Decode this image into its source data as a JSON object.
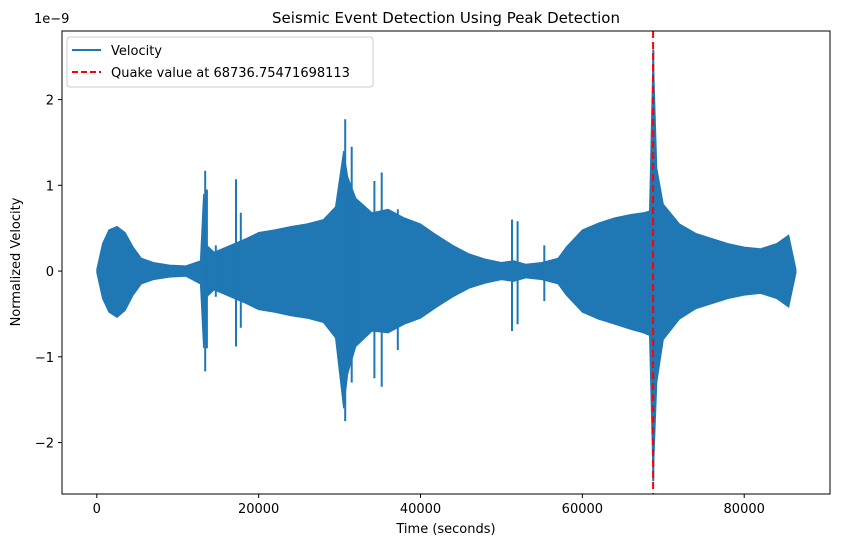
{
  "chart_data": {
    "type": "line",
    "title": "Seismic Event Detection Using Peak Detection",
    "xlabel": "Time (seconds)",
    "ylabel": "Normalized Velocity",
    "y_offset_label": "1e−9",
    "xlim": [
      -4300,
      90600
    ],
    "ylim": [
      -2.6,
      2.8
    ],
    "x_ticks": [
      0,
      20000,
      40000,
      60000,
      80000
    ],
    "x_tick_labels": [
      "0",
      "20000",
      "40000",
      "60000",
      "80000"
    ],
    "y_ticks": [
      -2,
      -1,
      0,
      1,
      2
    ],
    "y_tick_labels": [
      "−2",
      "−1",
      "0",
      "1",
      "2"
    ],
    "grid": false,
    "legend_position": "top-left",
    "series": [
      {
        "name": "Velocity",
        "color": "#1f77b4",
        "style": "solid",
        "envelope": {
          "x": [
            0,
            700,
            1500,
            2500,
            3500,
            4500,
            5500,
            7000,
            9000,
            11000,
            12800,
            13200,
            13600,
            14500,
            16000,
            17000,
            18500,
            20000,
            22000,
            24000,
            26000,
            28000,
            29500,
            30500,
            31000,
            32000,
            34000,
            36000,
            38000,
            40000,
            42000,
            44000,
            46000,
            48000,
            50000,
            51500,
            53000,
            55000,
            57000,
            58000,
            60000,
            62000,
            64000,
            66000,
            67500,
            68300,
            68737,
            69200,
            70000,
            72000,
            74000,
            76000,
            78000,
            80000,
            82000,
            84000,
            85500,
            86400
          ],
          "upper": [
            0.02,
            0.32,
            0.48,
            0.52,
            0.45,
            0.28,
            0.15,
            0.1,
            0.07,
            0.06,
            0.12,
            0.9,
            0.3,
            0.22,
            0.28,
            0.32,
            0.38,
            0.45,
            0.48,
            0.52,
            0.55,
            0.6,
            0.75,
            1.4,
            1.1,
            0.85,
            0.68,
            0.72,
            0.62,
            0.55,
            0.42,
            0.3,
            0.2,
            0.14,
            0.1,
            0.12,
            0.08,
            0.1,
            0.15,
            0.28,
            0.48,
            0.56,
            0.62,
            0.66,
            0.68,
            0.7,
            2.6,
            1.2,
            0.78,
            0.55,
            0.44,
            0.38,
            0.32,
            0.28,
            0.26,
            0.32,
            0.42,
            0.02
          ],
          "lower": [
            -0.02,
            -0.32,
            -0.48,
            -0.54,
            -0.46,
            -0.28,
            -0.15,
            -0.1,
            -0.07,
            -0.06,
            -0.15,
            -0.9,
            -0.3,
            -0.22,
            -0.28,
            -0.32,
            -0.38,
            -0.45,
            -0.48,
            -0.52,
            -0.55,
            -0.6,
            -0.78,
            -1.6,
            -1.2,
            -0.88,
            -0.7,
            -0.72,
            -0.62,
            -0.55,
            -0.42,
            -0.3,
            -0.2,
            -0.14,
            -0.1,
            -0.12,
            -0.08,
            -0.1,
            -0.15,
            -0.28,
            -0.48,
            -0.56,
            -0.62,
            -0.68,
            -0.72,
            -0.75,
            -2.45,
            -1.3,
            -0.8,
            -0.56,
            -0.44,
            -0.38,
            -0.32,
            -0.28,
            -0.26,
            -0.32,
            -0.42,
            -0.02
          ]
        },
        "spikes": [
          {
            "x": 13400,
            "max": 1.17,
            "min": -1.17
          },
          {
            "x": 13600,
            "max": 0.95,
            "min": -0.9
          },
          {
            "x": 14700,
            "max": 0.3,
            "min": -0.3
          },
          {
            "x": 17200,
            "max": 1.07,
            "min": -0.88
          },
          {
            "x": 17800,
            "max": 0.68,
            "min": -0.66
          },
          {
            "x": 30700,
            "max": 1.77,
            "min": -1.75
          },
          {
            "x": 31500,
            "max": 1.45,
            "min": -1.3
          },
          {
            "x": 34300,
            "max": 1.05,
            "min": -1.25
          },
          {
            "x": 35200,
            "max": 1.15,
            "min": -1.35
          },
          {
            "x": 37200,
            "max": 0.72,
            "min": -0.92
          },
          {
            "x": 51300,
            "max": 0.6,
            "min": -0.7
          },
          {
            "x": 52000,
            "max": 0.58,
            "min": -0.62
          },
          {
            "x": 55300,
            "max": 0.3,
            "min": -0.35
          },
          {
            "x": 68760,
            "max": 2.58,
            "min": -2.45
          }
        ]
      },
      {
        "name": "Quake value at 68736.75471698113",
        "color": "#ff0000",
        "style": "dashed",
        "x": 68736.75471698113
      }
    ]
  }
}
